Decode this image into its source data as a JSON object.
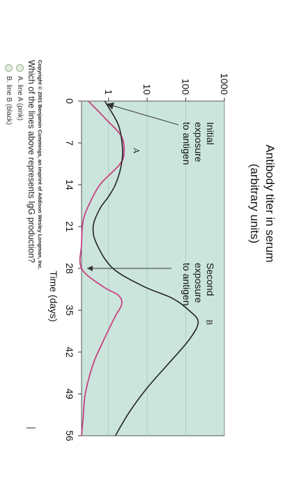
{
  "chart_data": {
    "type": "line",
    "title_lines": [
      "Antibody titer in serum",
      "(arbitrary units)"
    ],
    "xlabel": "Time (days)",
    "x_ticks": [
      "0",
      "7",
      "14",
      "21",
      "28",
      "35",
      "42",
      "49",
      "56"
    ],
    "y_ticks": [
      "1",
      "10",
      "100",
      "1000"
    ],
    "y_scale": "log",
    "xlim": [
      0,
      56
    ],
    "ylim": [
      0.2,
      1000
    ],
    "background_color": "#cbe5dc",
    "annotations": [
      {
        "lines": [
          "Initial",
          "exposure",
          "to antigen"
        ],
        "x": 0
      },
      {
        "lines": [
          "Second",
          "exposure",
          "to antigen"
        ],
        "x": 28
      }
    ],
    "series": [
      {
        "name": "A",
        "color": "#c94080",
        "x": [
          0,
          3,
          6,
          9,
          10.5,
          12,
          14,
          17,
          20,
          24,
          28,
          31,
          32.5,
          34,
          36,
          40,
          44,
          49,
          53,
          56
        ],
        "y": [
          0.3,
          0.85,
          2.2,
          2.5,
          2.0,
          1.2,
          0.6,
          0.33,
          0.22,
          0.2,
          0.2,
          0.7,
          1.8,
          2.2,
          1.5,
          0.75,
          0.4,
          0.25,
          0.22,
          0.2
        ]
      },
      {
        "name": "B",
        "color": "#222222",
        "x": [
          0,
          4,
          8,
          11,
          14,
          16,
          18,
          21,
          24,
          28,
          31,
          33,
          35,
          37,
          40,
          44,
          48,
          52,
          56
        ],
        "y": [
          0.8,
          1.8,
          2.3,
          2.1,
          1.5,
          1.0,
          0.6,
          0.4,
          0.5,
          1.3,
          8,
          45,
          120,
          210,
          120,
          35,
          10,
          3.5,
          1.5
        ]
      }
    ]
  },
  "copyright": "Copyright © 2001 Benjamin Cummings, an imprint of Addison Wesley Longman, Inc.",
  "question": {
    "text": "Which of the lines above represents IgG production?",
    "options": [
      {
        "label": "A. line A (pink)"
      },
      {
        "label": "B. line B (black)"
      }
    ]
  },
  "right_mark": "|"
}
